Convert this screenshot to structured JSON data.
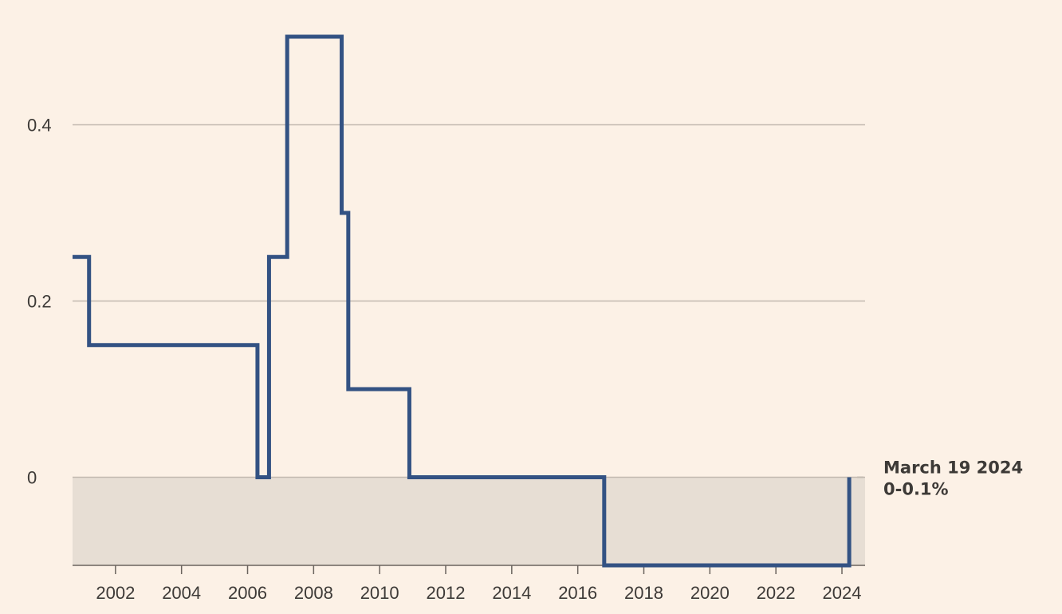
{
  "chart_data": {
    "type": "line",
    "step": true,
    "title": "",
    "xlabel": "",
    "ylabel": "",
    "xlim": [
      2000.7,
      2024.7
    ],
    "ylim": [
      -0.1,
      0.5
    ],
    "y_ticks": [
      0,
      0.2,
      0.4
    ],
    "y_tick_labels": [
      "0",
      "0.2",
      "0.4"
    ],
    "x_ticks": [
      2002,
      2004,
      2006,
      2008,
      2010,
      2012,
      2014,
      2016,
      2018,
      2020,
      2022,
      2024
    ],
    "x_tick_labels": [
      "2002",
      "2004",
      "2006",
      "2008",
      "2010",
      "2012",
      "2014",
      "2016",
      "2018",
      "2020",
      "2022",
      "2024"
    ],
    "grid": "horizontal",
    "negative_region_shaded": true,
    "colors": {
      "background": "#fcf1e6",
      "line": "#335283",
      "grid": "#c2b9b0",
      "shade": "#e7ded4",
      "text": "#3d3a37"
    },
    "series": [
      {
        "points": [
          [
            2000.7,
            0.25
          ],
          [
            2001.2,
            0.15
          ],
          [
            2006.3,
            0.0
          ],
          [
            2006.65,
            0.25
          ],
          [
            2007.2,
            0.5
          ],
          [
            2008.85,
            0.3
          ],
          [
            2009.05,
            0.1
          ],
          [
            2010.9,
            0.0
          ],
          [
            2016.8,
            -0.1
          ],
          [
            2024.22,
            0.0
          ]
        ]
      }
    ],
    "annotation": {
      "line1": "March 19 2024",
      "line2": "0-0.1%",
      "x": 2024.22,
      "y": 0
    }
  }
}
